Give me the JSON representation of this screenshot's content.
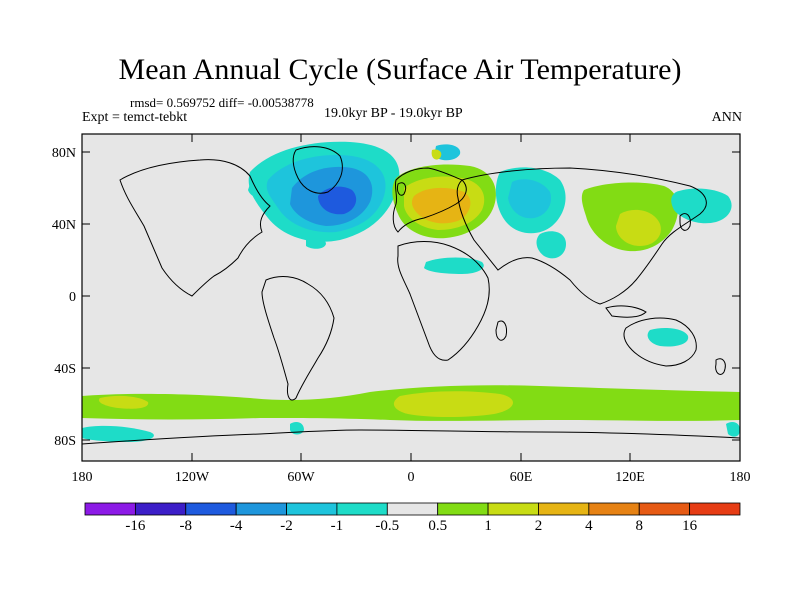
{
  "title": "Mean Annual Cycle (Surface Air Temperature)",
  "stats": "rmsd= 0.569752 diff= -0.00538778",
  "expt": "Expt = temct-tebkt",
  "period": "19.0kyr BP - 19.0kyr BP",
  "season": "ANN",
  "lat_ticks": [
    "80N",
    "40N",
    "0",
    "40S",
    "80S"
  ],
  "lon_ticks": [
    "180",
    "120W",
    "60W",
    "0",
    "60E",
    "120E",
    "180"
  ],
  "colorbar": {
    "colors": [
      "#8c1ae6",
      "#3c1ec8",
      "#1e5ade",
      "#1e96dc",
      "#1ec4dc",
      "#1edcc8",
      "#e6e6e6",
      "#82dc14",
      "#c8dc14",
      "#e6b414",
      "#e68214",
      "#e65a14",
      "#e63c14"
    ],
    "labels": [
      "-16",
      "-8",
      "-4",
      "-2",
      "-1",
      "-0.5",
      "0.5",
      "1",
      "2",
      "4",
      "8",
      "16"
    ]
  }
}
